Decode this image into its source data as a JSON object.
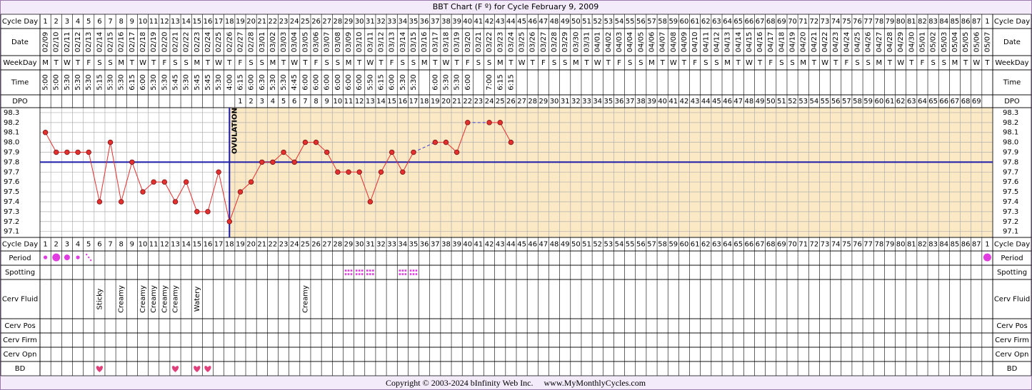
{
  "chart_data": {
    "type": "line",
    "title": "BBT Chart (F º) for Cycle February 9, 2009",
    "row_labels": {
      "cycle_day": "Cycle Day",
      "date": "Date",
      "weekday": "WeekDay",
      "time": "Time",
      "dpo": "DPO",
      "period": "Period",
      "spotting": "Spotting",
      "cerv_fluid": "Cerv Fluid",
      "cerv_pos": "Cerv Pos",
      "cerv_firm": "Cerv Firm",
      "cerv_opn": "Cerv Opn",
      "bd": "BD"
    },
    "categories": [
      "1",
      "2",
      "3",
      "4",
      "5",
      "6",
      "7",
      "8",
      "9",
      "10",
      "11",
      "12",
      "13",
      "14",
      "15",
      "16",
      "17",
      "18",
      "19",
      "20",
      "21",
      "22",
      "23",
      "24",
      "25",
      "26",
      "27",
      "28",
      "29",
      "30",
      "31",
      "32",
      "33",
      "34",
      "35",
      "36",
      "37",
      "38",
      "39",
      "40",
      "41",
      "42",
      "43",
      "44",
      "45",
      "46",
      "47",
      "48",
      "49",
      "50",
      "51",
      "52",
      "53",
      "54",
      "55",
      "56",
      "57",
      "58",
      "59",
      "60",
      "61",
      "62",
      "63",
      "64",
      "65",
      "66",
      "67",
      "68",
      "69",
      "70",
      "71",
      "72",
      "73",
      "74",
      "75",
      "76",
      "77",
      "78",
      "79",
      "80",
      "81",
      "82",
      "83",
      "84",
      "85",
      "86",
      "87",
      "1"
    ],
    "dates": [
      "02/09",
      "02/10",
      "02/11",
      "02/12",
      "02/13",
      "02/14",
      "02/15",
      "02/16",
      "02/17",
      "02/18",
      "02/19",
      "02/20",
      "02/21",
      "02/22",
      "02/23",
      "02/24",
      "02/25",
      "02/26",
      "02/27",
      "02/28",
      "03/01",
      "03/02",
      "03/03",
      "03/04",
      "03/05",
      "03/06",
      "03/07",
      "03/08",
      "03/09",
      "03/10",
      "03/11",
      "03/12",
      "03/13",
      "03/14",
      "03/15",
      "03/16",
      "03/17",
      "03/18",
      "03/19",
      "03/20",
      "03/21",
      "03/22",
      "03/23",
      "03/24",
      "03/25",
      "03/26",
      "03/27",
      "03/28",
      "03/29",
      "03/30",
      "03/31",
      "04/01",
      "04/02",
      "04/03",
      "04/04",
      "04/05",
      "04/06",
      "04/07",
      "04/08",
      "04/09",
      "04/10",
      "04/11",
      "04/12",
      "04/13",
      "04/14",
      "04/15",
      "04/16",
      "04/17",
      "04/18",
      "04/19",
      "04/20",
      "04/21",
      "04/22",
      "04/23",
      "04/24",
      "04/25",
      "04/26",
      "04/27",
      "04/28",
      "04/29",
      "04/30",
      "05/01",
      "05/02",
      "05/03",
      "05/04",
      "05/05",
      "05/06",
      "05/07"
    ],
    "weekdays": [
      "M",
      "T",
      "W",
      "T",
      "F",
      "S",
      "S",
      "M",
      "T",
      "W",
      "T",
      "F",
      "S",
      "S",
      "M",
      "T",
      "W",
      "T",
      "F",
      "S",
      "S",
      "M",
      "T",
      "W",
      "T",
      "F",
      "S",
      "S",
      "M",
      "T",
      "W",
      "T",
      "F",
      "S",
      "S",
      "M",
      "T",
      "W",
      "T",
      "F",
      "S",
      "S",
      "M",
      "T",
      "W",
      "T",
      "F",
      "S",
      "S",
      "M",
      "T",
      "W",
      "T",
      "F",
      "S",
      "S",
      "M",
      "T",
      "W",
      "T",
      "F",
      "S",
      "S",
      "M",
      "T",
      "W",
      "T",
      "F",
      "S",
      "S",
      "M",
      "T",
      "W",
      "T",
      "F",
      "S",
      "S",
      "M",
      "T",
      "W",
      "T",
      "F",
      "S",
      "S",
      "M",
      "T",
      "W",
      "T"
    ],
    "times": [
      "5:00",
      "5:00",
      "5:30",
      "5:30",
      "5:30",
      "5:15",
      "5:30",
      "5:30",
      "6:15",
      "6:00",
      "5:30",
      "5:30",
      "5:45",
      "5:30",
      "5:45",
      "5:45",
      "5:30",
      "4:00",
      "6:15",
      "6:00",
      "6:30",
      "5:30",
      "5:30",
      "4:45",
      "6:00",
      "6:00",
      "6:00",
      "6:00",
      "6:00",
      "6:00",
      "5:50",
      "6:15",
      "6:00",
      "5:30",
      "5:30",
      null,
      "6:00",
      "5:30",
      "5:30",
      "6:00",
      null,
      "7:00",
      "6:15",
      "6:15",
      null,
      null,
      null,
      null,
      null,
      null,
      null,
      null,
      null,
      null,
      null,
      null,
      null,
      null,
      null,
      null,
      null,
      null,
      null,
      null,
      null,
      null,
      null,
      null,
      null,
      null,
      null,
      null,
      null,
      null,
      null,
      null,
      null,
      null,
      null,
      null,
      null,
      null,
      null,
      null,
      null,
      null,
      null,
      null
    ],
    "dpo": [
      null,
      null,
      null,
      null,
      null,
      null,
      null,
      null,
      null,
      null,
      null,
      null,
      null,
      null,
      null,
      null,
      null,
      null,
      1,
      2,
      3,
      4,
      5,
      6,
      7,
      8,
      9,
      10,
      11,
      12,
      13,
      14,
      15,
      16,
      17,
      18,
      19,
      20,
      21,
      22,
      23,
      24,
      25,
      26,
      27,
      28,
      29,
      30,
      31,
      32,
      33,
      34,
      35,
      36,
      37,
      38,
      39,
      40,
      41,
      42,
      43,
      44,
      45,
      46,
      47,
      48,
      49,
      50,
      51,
      52,
      53,
      54,
      55,
      56,
      57,
      58,
      59,
      60,
      61,
      62,
      63,
      64,
      65,
      66,
      67,
      68,
      69,
      null
    ],
    "series": [
      {
        "color": "#e53030",
        "values": [
          98.1,
          97.9,
          97.9,
          97.9,
          97.9,
          97.4,
          98.0,
          97.4,
          97.8,
          97.5,
          97.6,
          97.6,
          97.4,
          97.6,
          97.3,
          97.3,
          97.7,
          97.2,
          97.5,
          97.6,
          97.8,
          97.8,
          97.9,
          97.8,
          98.0,
          98.0,
          97.9,
          97.7,
          97.7,
          97.7,
          97.4,
          97.7,
          97.9,
          97.7,
          97.9,
          null,
          98.0,
          98.0,
          97.9,
          98.2,
          null,
          98.2,
          98.2,
          98.0,
          null,
          null,
          null,
          null,
          null,
          null,
          null,
          null,
          null,
          null,
          null,
          null,
          null,
          null,
          null,
          null,
          null,
          null,
          null,
          null,
          null,
          null,
          null,
          null,
          null,
          null,
          null,
          null,
          null,
          null,
          null,
          null,
          null,
          null,
          null,
          null,
          null,
          null,
          null,
          null,
          null,
          null,
          null,
          null
        ]
      }
    ],
    "ylim": [
      97.04,
      98.35
    ],
    "yticks": [
      98.3,
      98.2,
      98.1,
      {
        "value": 98,
        "label": "98.0"
      },
      97.9,
      97.8,
      97.7,
      97.6,
      97.5,
      97.4,
      97.3,
      97.2,
      97.1
    ],
    "grid": true,
    "coverline": 97.8,
    "coverline_color": "#1c1ca8",
    "ovulation_day": 18,
    "ovulation_label": "OVULATION",
    "period": [
      "light",
      "heavy",
      "medium",
      "light",
      "spotting",
      null,
      null,
      null,
      null,
      null,
      null,
      null,
      null,
      null,
      null,
      null,
      null,
      null,
      null,
      null,
      null,
      null,
      null,
      null,
      null,
      null,
      null,
      null,
      null,
      null,
      null,
      null,
      null,
      null,
      null,
      null,
      null,
      null,
      null,
      null,
      null,
      null,
      null,
      null,
      null,
      null,
      null,
      null,
      null,
      null,
      null,
      null,
      null,
      null,
      null,
      null,
      null,
      null,
      null,
      null,
      null,
      null,
      null,
      null,
      null,
      null,
      null,
      null,
      null,
      null,
      null,
      null,
      null,
      null,
      null,
      null,
      null,
      null,
      null,
      null,
      null,
      null,
      null,
      null,
      null,
      null,
      null,
      "heavy"
    ],
    "period_color": "#e03ce0",
    "spotting_days": [
      29,
      30,
      31,
      34,
      35
    ],
    "cerv_fluid": [
      null,
      null,
      null,
      null,
      null,
      "Sticky",
      null,
      "Creamy",
      null,
      "Creamy",
      "Creamy",
      "Creamy",
      "Creamy",
      null,
      "Watery",
      null,
      null,
      null,
      null,
      null,
      null,
      null,
      null,
      null,
      "Creamy",
      null,
      null,
      null,
      null,
      null,
      null,
      null,
      null,
      null,
      null,
      null,
      null,
      null,
      null,
      null,
      null,
      null,
      null,
      null,
      null,
      null,
      null,
      null,
      null,
      null,
      null,
      null,
      null,
      null,
      null,
      null,
      null,
      null,
      null,
      null,
      null,
      null,
      null,
      null,
      null,
      null,
      null,
      null,
      null,
      null,
      null,
      null,
      null,
      null,
      null,
      null,
      null,
      null,
      null,
      null,
      null,
      null,
      null,
      null,
      null,
      null,
      null,
      null
    ],
    "bd_days": [
      6,
      13,
      15,
      16
    ],
    "bd_color": "#e0407a",
    "copyright": "Copyright © 2003-2024 bInfinity Web Inc.     www.MyMonthlyCycles.com"
  }
}
